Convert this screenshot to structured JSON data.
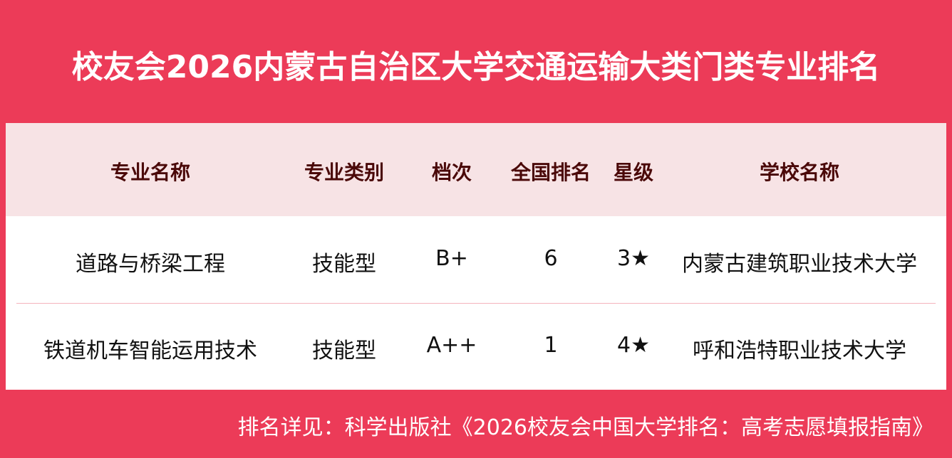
{
  "title": "校友会2026内蒙古自治区大学交通运输大类门类专业排名",
  "columns": [
    "专业名称",
    "专业类别",
    "档次",
    "全国排名",
    "星级",
    "学校名称"
  ],
  "rows": [
    [
      "道路与桥梁工程",
      "技能型",
      "B+",
      "6",
      "3★",
      "内蒙古建筑职业技术大学"
    ],
    [
      "铁道机车智能运用技术",
      "技能型",
      "A++",
      "1",
      "4★",
      "呼和浩特职业技术大学"
    ]
  ],
  "footer": "排名详见：科学出版社《2026校友会中国大学排名：高考志愿填报指南》",
  "colors": {
    "background": "#ec3b58",
    "header_bg": "#f7e3e5",
    "header_text": "#4a0808"
  }
}
